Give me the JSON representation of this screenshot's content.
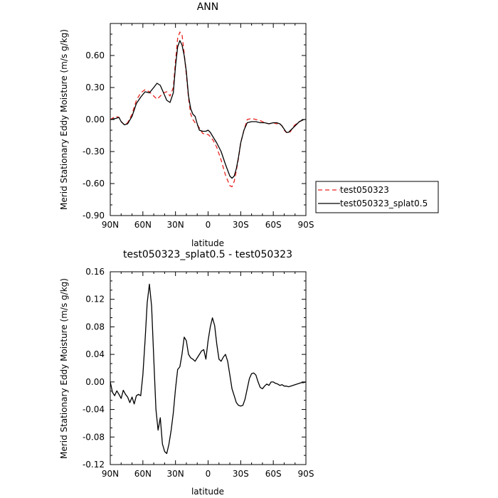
{
  "chart_data": [
    {
      "type": "line",
      "title": "ANN",
      "xlabel": "latitude",
      "ylabel": "Merid Stationary Eddy Moisture (m/s g/kg)",
      "xlim": [
        90,
        -90
      ],
      "ylim": [
        -0.9,
        0.9
      ],
      "xticks": [
        {
          "value": 90,
          "label": "90N"
        },
        {
          "value": 60,
          "label": "60N"
        },
        {
          "value": 30,
          "label": "30N"
        },
        {
          "value": 0,
          "label": "0"
        },
        {
          "value": -30,
          "label": "30S"
        },
        {
          "value": -60,
          "label": "60S"
        },
        {
          "value": -90,
          "label": "90S"
        }
      ],
      "yticks": [
        {
          "value": 0.6,
          "label": "0.60"
        },
        {
          "value": 0.3,
          "label": "0.30"
        },
        {
          "value": 0.0,
          "label": "0.00"
        },
        {
          "value": -0.3,
          "label": "-0.30"
        },
        {
          "value": -0.6,
          "label": "-0.60"
        },
        {
          "value": -0.9,
          "label": "-0.90"
        }
      ],
      "legend": {
        "position": "right",
        "entries": [
          {
            "label": "test050323",
            "color": "#e8231f",
            "dash": "dashed"
          },
          {
            "label": "test050323_splat0.5",
            "color": "#000000",
            "dash": "solid"
          }
        ]
      },
      "series": [
        {
          "name": "test050323",
          "color": "#e8231f",
          "dash": "dashed",
          "x": [
            90,
            85,
            82,
            80,
            77,
            74,
            70,
            66,
            62,
            58,
            54,
            50,
            47,
            44,
            41,
            38,
            35,
            32,
            30,
            28,
            26,
            24,
            22,
            20,
            18,
            16,
            14,
            12,
            10,
            8,
            5,
            2,
            0,
            -2,
            -5,
            -8,
            -12,
            -16,
            -20,
            -22,
            -24,
            -26,
            -28,
            -30,
            -33,
            -36,
            -40,
            -44,
            -48,
            -52,
            -56,
            -60,
            -63,
            -66,
            -68,
            -70,
            -72,
            -74,
            -76,
            -78,
            -80,
            -84,
            -88,
            -90
          ],
          "y": [
            0.0,
            0.03,
            0.02,
            -0.02,
            -0.05,
            -0.03,
            0.05,
            0.18,
            0.25,
            0.28,
            0.26,
            0.22,
            0.19,
            0.22,
            0.25,
            0.26,
            0.22,
            0.3,
            0.55,
            0.76,
            0.82,
            0.8,
            0.62,
            0.42,
            0.2,
            0.05,
            0.0,
            -0.03,
            -0.05,
            -0.08,
            -0.13,
            -0.14,
            -0.14,
            -0.16,
            -0.2,
            -0.26,
            -0.38,
            -0.52,
            -0.62,
            -0.63,
            -0.58,
            -0.48,
            -0.36,
            -0.22,
            -0.1,
            0.0,
            0.01,
            0.0,
            -0.01,
            -0.03,
            -0.04,
            -0.03,
            -0.04,
            -0.04,
            -0.06,
            -0.1,
            -0.12,
            -0.13,
            -0.11,
            -0.07,
            -0.05,
            -0.02,
            0.0,
            0.0
          ]
        },
        {
          "name": "test050323_splat0.5",
          "color": "#000000",
          "dash": "solid",
          "x": [
            90,
            85,
            82,
            80,
            77,
            74,
            70,
            66,
            62,
            58,
            54,
            50,
            47,
            44,
            41,
            38,
            35,
            32,
            30,
            28,
            26,
            24,
            22,
            20,
            18,
            16,
            14,
            12,
            10,
            8,
            5,
            2,
            0,
            -2,
            -5,
            -8,
            -12,
            -16,
            -20,
            -22,
            -24,
            -26,
            -28,
            -30,
            -33,
            -36,
            -40,
            -44,
            -48,
            -52,
            -56,
            -60,
            -63,
            -66,
            -68,
            -70,
            -72,
            -74,
            -76,
            -78,
            -80,
            -84,
            -88,
            -90
          ],
          "y": [
            0.0,
            0.01,
            0.02,
            -0.02,
            -0.05,
            -0.04,
            0.03,
            0.15,
            0.21,
            0.26,
            0.25,
            0.3,
            0.34,
            0.32,
            0.25,
            0.18,
            0.16,
            0.25,
            0.5,
            0.68,
            0.74,
            0.7,
            0.6,
            0.45,
            0.22,
            0.1,
            0.05,
            0.03,
            -0.04,
            -0.1,
            -0.11,
            -0.11,
            -0.1,
            -0.12,
            -0.17,
            -0.22,
            -0.3,
            -0.42,
            -0.53,
            -0.55,
            -0.53,
            -0.46,
            -0.35,
            -0.22,
            -0.1,
            -0.03,
            -0.02,
            -0.02,
            -0.03,
            -0.03,
            -0.04,
            -0.03,
            -0.03,
            -0.04,
            -0.06,
            -0.09,
            -0.12,
            -0.12,
            -0.1,
            -0.08,
            -0.06,
            -0.02,
            0.0,
            0.0
          ]
        }
      ]
    },
    {
      "type": "line",
      "title": "test050323_splat0.5 - test050323",
      "xlabel": "latitude",
      "ylabel": "Merid Stationary Eddy Moisture (m/s g/kg)",
      "xlim": [
        90,
        -90
      ],
      "ylim": [
        -0.12,
        0.16
      ],
      "xticks": [
        {
          "value": 90,
          "label": "90N"
        },
        {
          "value": 60,
          "label": "60N"
        },
        {
          "value": 30,
          "label": "30N"
        },
        {
          "value": 0,
          "label": "0"
        },
        {
          "value": -30,
          "label": "30S"
        },
        {
          "value": -60,
          "label": "60S"
        },
        {
          "value": -90,
          "label": "90S"
        }
      ],
      "yticks": [
        {
          "value": 0.16,
          "label": "0.16"
        },
        {
          "value": 0.12,
          "label": "0.12"
        },
        {
          "value": 0.08,
          "label": "0.08"
        },
        {
          "value": 0.04,
          "label": "0.04"
        },
        {
          "value": 0.0,
          "label": "0.00"
        },
        {
          "value": -0.04,
          "label": "-0.04"
        },
        {
          "value": -0.08,
          "label": "-0.08"
        },
        {
          "value": -0.12,
          "label": "-0.12"
        }
      ],
      "series": [
        {
          "color": "#000000",
          "dash": "solid",
          "x": [
            90,
            88,
            86,
            84,
            82,
            80,
            78,
            76,
            74,
            72,
            70,
            68,
            66,
            64,
            62,
            60,
            58,
            56,
            54,
            52,
            50,
            48,
            46,
            44,
            42,
            40,
            38,
            36,
            34,
            32,
            30,
            28,
            26,
            24,
            22,
            20,
            18,
            16,
            14,
            12,
            10,
            8,
            6,
            4,
            2,
            0,
            -2,
            -4,
            -6,
            -8,
            -10,
            -12,
            -14,
            -16,
            -18,
            -20,
            -22,
            -24,
            -26,
            -28,
            -30,
            -32,
            -34,
            -36,
            -38,
            -40,
            -42,
            -44,
            -46,
            -48,
            -50,
            -52,
            -54,
            -56,
            -58,
            -60,
            -62,
            -64,
            -66,
            -68,
            -70,
            -72,
            -74,
            -76,
            -78,
            -80,
            -82,
            -84,
            -86,
            -88,
            -90
          ],
          "y": [
            0.0,
            -0.015,
            -0.02,
            -0.013,
            -0.018,
            -0.024,
            -0.012,
            -0.018,
            -0.022,
            -0.03,
            -0.022,
            -0.032,
            -0.02,
            -0.018,
            -0.02,
            0.01,
            0.06,
            0.115,
            0.142,
            0.11,
            0.035,
            -0.04,
            -0.07,
            -0.052,
            -0.09,
            -0.101,
            -0.104,
            -0.09,
            -0.07,
            -0.045,
            -0.01,
            0.018,
            0.022,
            0.04,
            0.065,
            0.06,
            0.04,
            0.035,
            0.033,
            0.03,
            0.035,
            0.04,
            0.045,
            0.047,
            0.033,
            0.06,
            0.08,
            0.093,
            0.082,
            0.055,
            0.033,
            0.03,
            0.036,
            0.04,
            0.03,
            0.01,
            -0.01,
            -0.02,
            -0.03,
            -0.034,
            -0.035,
            -0.034,
            -0.025,
            -0.01,
            0.005,
            0.012,
            0.013,
            0.01,
            0.0,
            -0.008,
            -0.01,
            -0.006,
            -0.003,
            -0.005,
            0.0,
            0.0,
            -0.002,
            -0.003,
            -0.005,
            -0.004,
            -0.006,
            -0.006,
            -0.007,
            -0.006,
            -0.005,
            -0.004,
            -0.003,
            -0.002,
            -0.001,
            -0.001,
            0.0
          ]
        }
      ]
    }
  ]
}
